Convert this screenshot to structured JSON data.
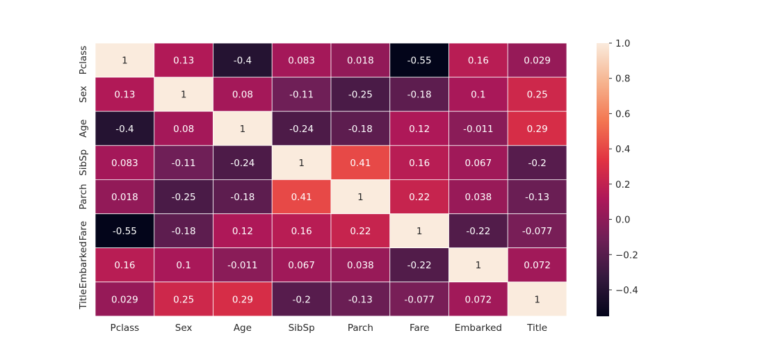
{
  "chart_data": {
    "type": "heatmap",
    "title": "",
    "xlabel": "",
    "ylabel": "",
    "labels": [
      "Pclass",
      "Sex",
      "Age",
      "SibSp",
      "Parch",
      "Fare",
      "Embarked",
      "Title"
    ],
    "annotations": [
      [
        "1",
        "0.13",
        "-0.4",
        "0.083",
        "0.018",
        "-0.55",
        "0.16",
        "0.029"
      ],
      [
        "0.13",
        "1",
        "0.08",
        "-0.11",
        "-0.25",
        "-0.18",
        "0.1",
        "0.25"
      ],
      [
        "-0.4",
        "0.08",
        "1",
        "-0.24",
        "-0.18",
        "0.12",
        "-0.011",
        "0.29"
      ],
      [
        "0.083",
        "-0.11",
        "-0.24",
        "1",
        "0.41",
        "0.16",
        "0.067",
        "-0.2"
      ],
      [
        "0.018",
        "-0.25",
        "-0.18",
        "0.41",
        "1",
        "0.22",
        "0.038",
        "-0.13"
      ],
      [
        "-0.55",
        "-0.18",
        "0.12",
        "0.16",
        "0.22",
        "1",
        "-0.22",
        "-0.077"
      ],
      [
        "0.16",
        "0.1",
        "-0.011",
        "0.067",
        "0.038",
        "-0.22",
        "1",
        "0.072"
      ],
      [
        "0.029",
        "0.25",
        "0.29",
        "-0.2",
        "-0.13",
        "-0.077",
        "0.072",
        "1"
      ]
    ],
    "values": [
      [
        1,
        0.13,
        -0.4,
        0.083,
        0.018,
        -0.55,
        0.16,
        0.029
      ],
      [
        0.13,
        1,
        0.08,
        -0.11,
        -0.25,
        -0.18,
        0.1,
        0.25
      ],
      [
        -0.4,
        0.08,
        1,
        -0.24,
        -0.18,
        0.12,
        -0.011,
        0.29
      ],
      [
        0.083,
        -0.11,
        -0.24,
        1,
        0.41,
        0.16,
        0.067,
        -0.2
      ],
      [
        0.018,
        -0.25,
        -0.18,
        0.41,
        1,
        0.22,
        0.038,
        -0.13
      ],
      [
        -0.55,
        -0.18,
        0.12,
        0.16,
        0.22,
        1,
        -0.22,
        -0.077
      ],
      [
        0.16,
        0.1,
        -0.011,
        0.067,
        0.038,
        -0.22,
        1,
        0.072
      ],
      [
        0.029,
        0.25,
        0.29,
        -0.2,
        -0.13,
        -0.077,
        0.072,
        1
      ]
    ],
    "colorbar": {
      "min": -0.55,
      "max": 1.0,
      "ticks": [
        -0.4,
        -0.2,
        0.0,
        0.2,
        0.4,
        0.6,
        0.8,
        1.0
      ],
      "tick_labels": [
        "−0.4",
        "−0.2",
        "0.0",
        "0.2",
        "0.4",
        "0.6",
        "0.8",
        "1.0"
      ],
      "colormap": "rocket",
      "colormap_stops": [
        "#03051a",
        "#35193e",
        "#701f57",
        "#ad1759",
        "#e13342",
        "#f37651",
        "#f6b48f",
        "#faebdd"
      ]
    },
    "grid": false,
    "cell_separator_color": "#ffffff"
  }
}
